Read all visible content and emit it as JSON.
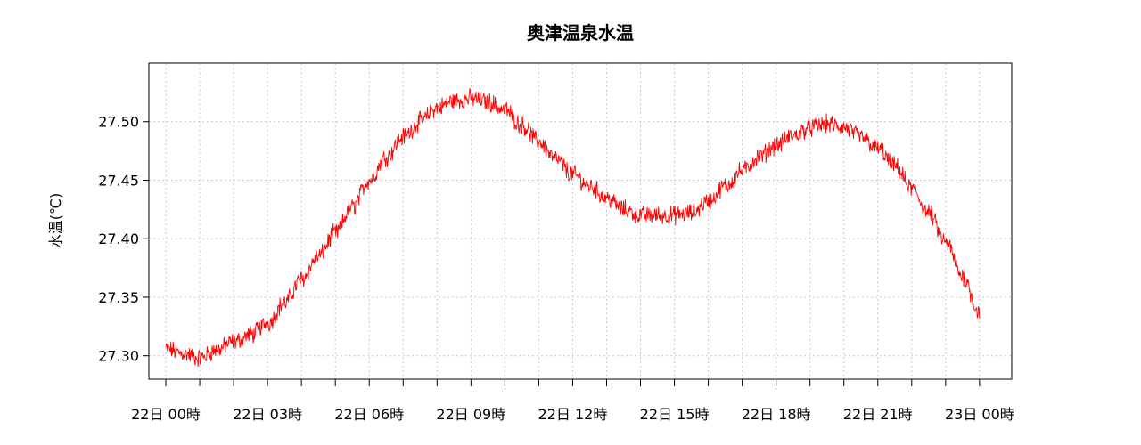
{
  "chart_data": {
    "type": "line",
    "title": "奥津温泉水温",
    "xlabel": "",
    "ylabel": "水温(℃)",
    "ylim": [
      27.28,
      27.55
    ],
    "xlim": [
      -0.5,
      24.95
    ],
    "y_ticks": [
      {
        "value": 27.3,
        "label": "27.30"
      },
      {
        "value": 27.35,
        "label": "27.35"
      },
      {
        "value": 27.4,
        "label": "27.40"
      },
      {
        "value": 27.45,
        "label": "27.45"
      },
      {
        "value": 27.5,
        "label": "27.50"
      }
    ],
    "x_ticks": [
      {
        "value": 0,
        "label": "22日 00時"
      },
      {
        "value": 3,
        "label": "22日 03時"
      },
      {
        "value": 6,
        "label": "22日 06時"
      },
      {
        "value": 9,
        "label": "22日 09時"
      },
      {
        "value": 12,
        "label": "22日 12時"
      },
      {
        "value": 15,
        "label": "22日 15時"
      },
      {
        "value": 18,
        "label": "22日 18時"
      },
      {
        "value": 21,
        "label": "22日 21時"
      },
      {
        "value": 24,
        "label": "23日 00時"
      }
    ],
    "x_minor_ticks": [
      1,
      2,
      4,
      5,
      7,
      8,
      10,
      11,
      13,
      14,
      16,
      17,
      19,
      20,
      22,
      23
    ],
    "grid": true,
    "series": [
      {
        "color": "#ff0000",
        "x": [
          0,
          0.5,
          1,
          1.5,
          2,
          2.5,
          3,
          3.5,
          4,
          4.5,
          5,
          5.5,
          6,
          6.5,
          7,
          7.5,
          8,
          8.5,
          9,
          9.5,
          10,
          10.5,
          11,
          11.5,
          12,
          12.5,
          13,
          13.5,
          14,
          14.5,
          15,
          15.5,
          16,
          16.5,
          17,
          17.5,
          18,
          18.5,
          19,
          19.5,
          20,
          20.5,
          21,
          21.5,
          22,
          22.5,
          23,
          23.5,
          24
        ],
        "y": [
          27.306,
          27.302,
          27.298,
          27.305,
          27.312,
          27.318,
          27.328,
          27.345,
          27.365,
          27.385,
          27.405,
          27.427,
          27.45,
          27.47,
          27.487,
          27.5,
          27.512,
          27.518,
          27.52,
          27.517,
          27.51,
          27.497,
          27.483,
          27.468,
          27.455,
          27.445,
          27.435,
          27.425,
          27.42,
          27.42,
          27.42,
          27.422,
          27.432,
          27.445,
          27.458,
          27.47,
          27.48,
          27.488,
          27.495,
          27.498,
          27.495,
          27.487,
          27.477,
          27.462,
          27.443,
          27.422,
          27.397,
          27.368,
          27.337
        ]
      }
    ]
  }
}
